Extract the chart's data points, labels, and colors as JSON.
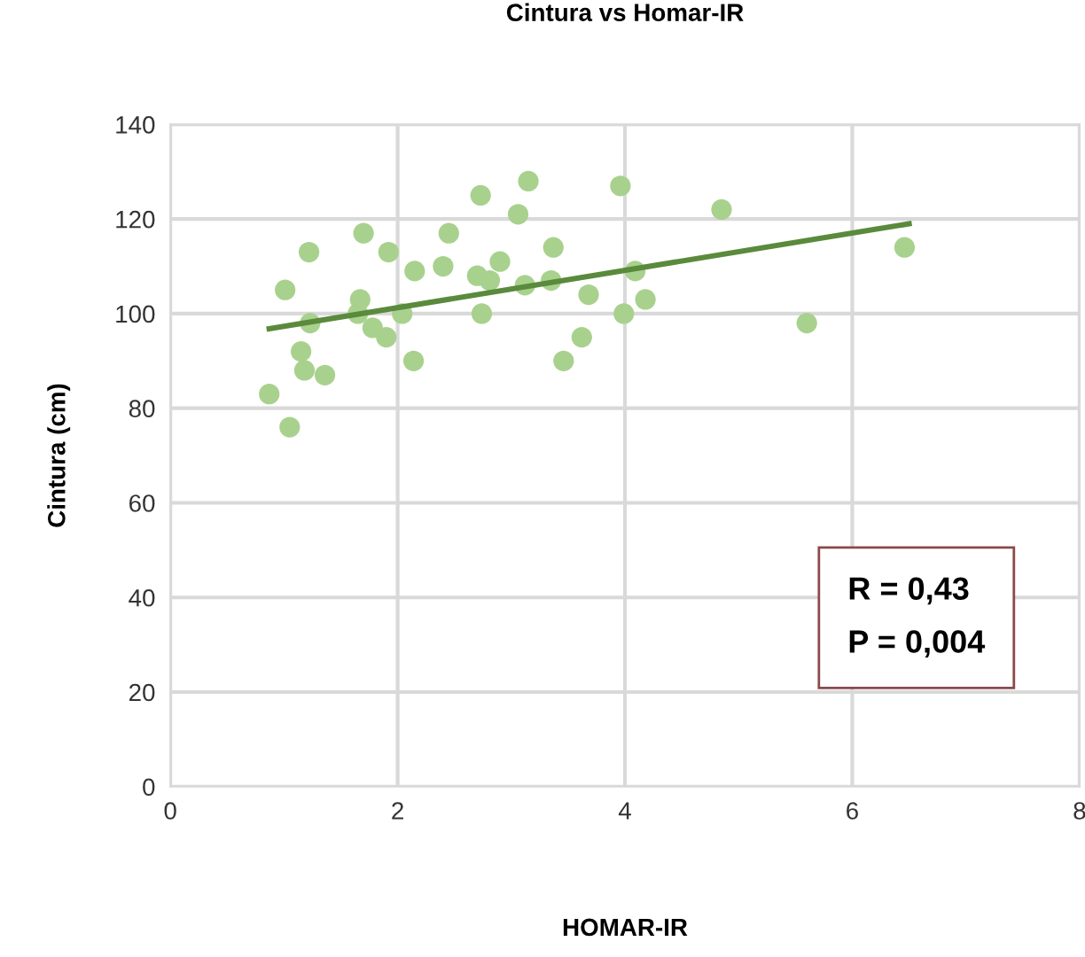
{
  "chart_data": {
    "type": "scatter",
    "title": "Cintura vs Homar-IR",
    "xlabel": "HOMAR-IR",
    "ylabel": "Cintura (cm)",
    "xlim": [
      0,
      8
    ],
    "xticks": [
      0,
      2,
      4,
      6,
      8
    ],
    "ylim": [
      0,
      140
    ],
    "yticks": [
      0,
      20,
      40,
      60,
      80,
      100,
      120,
      140
    ],
    "grid": true,
    "marker": "circle",
    "series": [
      {
        "color": "#a9d18e",
        "x": [
          0.87,
          1.05,
          1.01,
          1.15,
          1.18,
          1.22,
          1.23,
          1.36,
          1.7,
          1.67,
          1.65,
          1.78,
          1.9,
          1.92,
          2.04,
          2.14,
          2.15,
          2.4,
          2.45,
          2.73,
          2.7,
          2.74,
          2.81,
          2.9,
          3.06,
          3.15,
          3.12,
          3.37,
          3.35,
          3.46,
          3.62,
          3.68,
          3.96,
          3.99,
          4.09,
          4.18,
          4.85,
          5.6,
          6.46
        ],
        "values": [
          83,
          76,
          105,
          92,
          88,
          113,
          98,
          87,
          117,
          103,
          100,
          97,
          95,
          113,
          100,
          90,
          109,
          110,
          117,
          125,
          108,
          100,
          107,
          111,
          121,
          128,
          106,
          114,
          107,
          90,
          95,
          104,
          127,
          100,
          109,
          103,
          122,
          98,
          114
        ]
      },
      {
        "type": "line",
        "color": "#5a8a3c",
        "marker": "none",
        "x": [
          0.87,
          6.5
        ],
        "values": [
          96.8,
          119
        ]
      }
    ],
    "annotations": [
      "R = 0,43",
      "P = 0,004"
    ]
  }
}
